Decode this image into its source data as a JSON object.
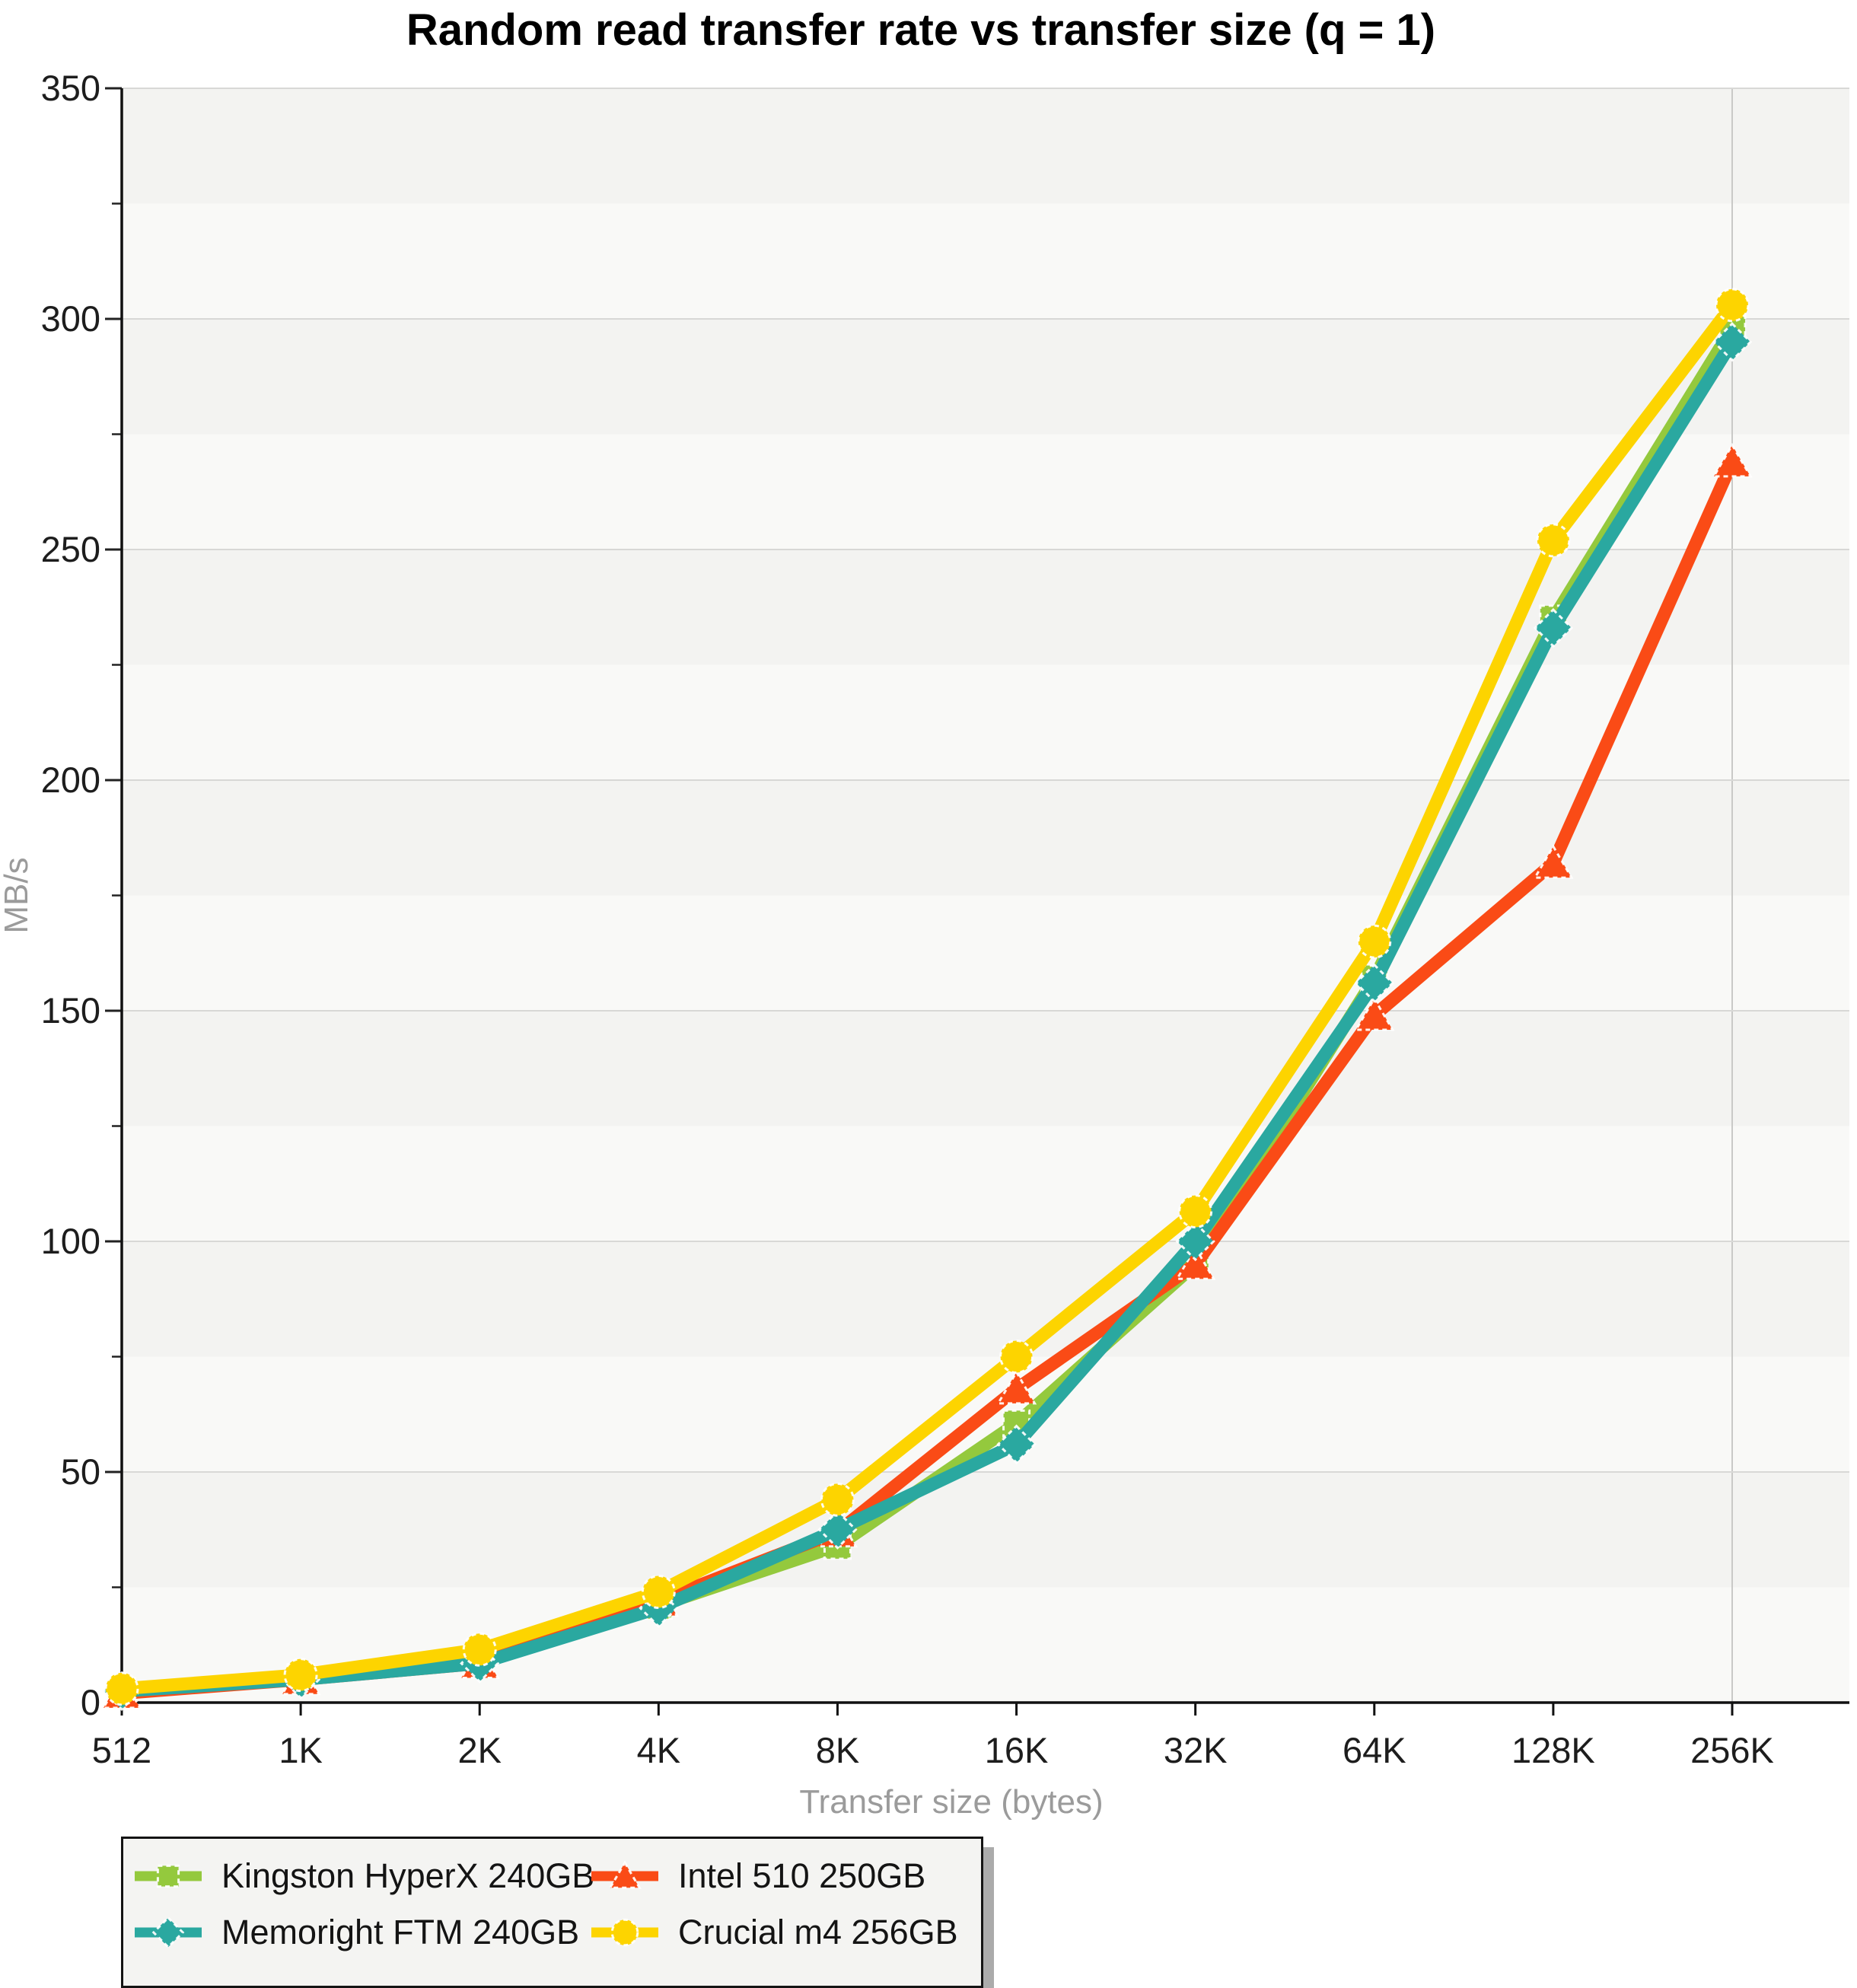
{
  "title": "Random read transfer rate vs transfer size (q = 1)",
  "y_axis": {
    "label": "MB/s",
    "min": 0,
    "max": 350,
    "major_tick_step": 50,
    "minor_tick_step": 25,
    "tick_labels": [
      "0",
      "50",
      "100",
      "150",
      "200",
      "250",
      "300",
      "350"
    ]
  },
  "x_axis": {
    "label": "Transfer size (bytes)",
    "tick_labels": [
      "512",
      "1K",
      "2K",
      "4K",
      "8K",
      "16K",
      "32K",
      "64K",
      "128K",
      "256K"
    ]
  },
  "chart_data": {
    "type": "line",
    "title": "Random read transfer rate vs transfer size (q = 1)",
    "xlabel": "Transfer size (bytes)",
    "ylabel": "MB/s",
    "ylim": [
      0,
      350
    ],
    "grid": true,
    "legend_position": "bottom-left",
    "categories": [
      "512",
      "1K",
      "2K",
      "4K",
      "8K",
      "16K",
      "32K",
      "64K",
      "128K",
      "256K"
    ],
    "series": [
      {
        "name": "Kingston HyperX 240GB",
        "color": "#94c93d",
        "marker": "square",
        "values": [
          2.5,
          5.5,
          10,
          21,
          34,
          60.5,
          95,
          157,
          235,
          298
        ]
      },
      {
        "name": "Intel 510 250GB",
        "color": "#fa4b16",
        "marker": "triangle",
        "values": [
          2,
          5,
          8.5,
          22,
          37,
          68,
          95,
          149,
          182,
          269
        ]
      },
      {
        "name": "Memoright FTM 240GB",
        "color": "#2aa8a0",
        "marker": "diamond",
        "values": [
          2.5,
          5,
          8.5,
          20.5,
          37.5,
          56,
          100,
          156,
          233,
          295
        ]
      },
      {
        "name": "Crucial m4 256GB",
        "color": "#fdd400",
        "marker": "circle",
        "values": [
          3,
          6,
          11.5,
          24,
          44,
          75,
          106.5,
          165,
          252,
          303
        ]
      }
    ]
  },
  "legend": {
    "items": [
      {
        "label": "Kingston HyperX 240GB",
        "marker": "square",
        "color": "#94c93d"
      },
      {
        "label": "Intel 510 250GB",
        "marker": "triangle",
        "color": "#fa4b16"
      },
      {
        "label": "Memoright FTM 240GB",
        "marker": "diamond",
        "color": "#2aa8a0"
      },
      {
        "label": "Crucial m4 256GB",
        "marker": "circle",
        "color": "#fdd400"
      }
    ]
  }
}
